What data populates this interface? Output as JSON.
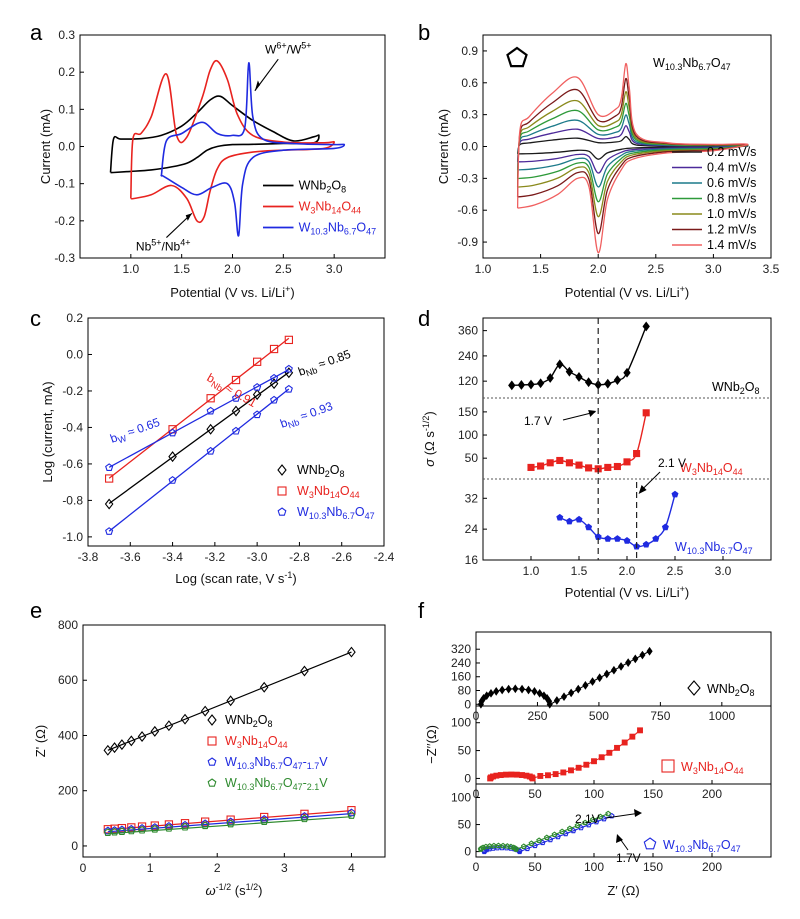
{
  "chart_data": [
    {
      "panel": "a",
      "type": "line",
      "xlabel": "Potential (V vs. Li/Li+)",
      "ylabel": "Current (mA)",
      "xlim": [
        0.5,
        3.5
      ],
      "ylim": [
        -0.3,
        0.3
      ],
      "xticks": [
        1.0,
        1.5,
        2.0,
        2.5,
        3.0
      ],
      "yticks": [
        -0.3,
        -0.2,
        -0.1,
        0.0,
        0.1,
        0.2,
        0.3
      ],
      "legend": "bottom-right",
      "series": [
        {
          "name": "WNb2O8",
          "color": "#000000",
          "x": [
            0.8,
            0.83,
            1.0,
            1.2,
            1.4,
            1.55,
            1.65,
            1.75,
            1.85,
            2.0,
            2.2,
            2.5,
            2.8,
            2.85,
            2.8,
            2.6,
            2.4,
            2.2,
            2.0,
            1.88,
            1.78,
            1.65,
            1.5,
            1.3,
            1.1,
            0.9,
            0.83,
            0.8
          ],
          "y": [
            -0.07,
            -0.07,
            -0.067,
            -0.063,
            -0.055,
            -0.045,
            -0.03,
            -0.01,
            0.0,
            0.005,
            0.006,
            0.008,
            0.01,
            0.03,
            0.026,
            0.015,
            0.04,
            0.07,
            0.11,
            0.135,
            0.125,
            0.09,
            0.055,
            0.03,
            0.021,
            0.02,
            0.02,
            -0.07
          ]
        },
        {
          "name": "W3Nb14O44",
          "color": "#e8231f",
          "x": [
            1.0,
            1.03,
            1.2,
            1.4,
            1.55,
            1.65,
            1.72,
            1.78,
            1.85,
            1.95,
            2.2,
            2.5,
            2.9,
            3.0,
            2.9,
            2.5,
            2.2,
            2.05,
            1.95,
            1.85,
            1.78,
            1.7,
            1.55,
            1.45,
            1.35,
            1.2,
            1.1,
            1.02,
            1.0
          ],
          "y": [
            -0.14,
            -0.14,
            -0.13,
            -0.105,
            -0.14,
            -0.2,
            -0.19,
            -0.12,
            -0.06,
            -0.03,
            -0.015,
            -0.01,
            -0.005,
            0.012,
            0.01,
            0.012,
            0.03,
            0.085,
            0.18,
            0.23,
            0.205,
            0.13,
            0.025,
            0.03,
            0.195,
            0.08,
            0.035,
            0.02,
            -0.14
          ]
        },
        {
          "name": "W10.3Nb6.7O47",
          "color": "#1f2ae0",
          "x": [
            1.3,
            1.32,
            1.5,
            1.65,
            1.8,
            1.95,
            2.02,
            2.06,
            2.1,
            2.2,
            2.5,
            3.0,
            3.1,
            3.0,
            2.6,
            2.3,
            2.2,
            2.16,
            2.12,
            2.0,
            1.85,
            1.7,
            1.5,
            1.35,
            1.3
          ],
          "y": [
            -0.08,
            -0.08,
            -0.11,
            -0.13,
            -0.11,
            -0.1,
            -0.15,
            -0.24,
            -0.1,
            -0.03,
            -0.01,
            -0.005,
            0.005,
            0.005,
            0.008,
            0.02,
            0.08,
            0.225,
            0.05,
            0.03,
            0.035,
            0.065,
            0.035,
            0.015,
            -0.08
          ]
        }
      ],
      "annotations": [
        {
          "text": "W6+/W5+",
          "x": 2.15,
          "y": 0.22
        },
        {
          "text": "Nb5+/Nb4+",
          "x": 1.6,
          "y": -0.21
        }
      ]
    },
    {
      "panel": "b",
      "type": "line",
      "xlabel": "Potential (V vs. Li/Li+)",
      "ylabel": "Current (mA)",
      "xlim": [
        1.0,
        3.5
      ],
      "ylim": [
        -1.05,
        1.05
      ],
      "xticks": [
        1.0,
        1.5,
        2.0,
        2.5,
        3.0,
        3.5
      ],
      "yticks": [
        -0.9,
        -0.6,
        -0.3,
        0.0,
        0.3,
        0.6,
        0.9
      ],
      "inset_title": "W10.3Nb6.7O47",
      "legend": "right",
      "shape": {
        "x": [
          1.3,
          1.45,
          1.65,
          1.82,
          1.92,
          2.0,
          2.08,
          2.2,
          2.3,
          2.6,
          3.0,
          3.3,
          3.0,
          2.6,
          2.33,
          2.27,
          2.24,
          2.2,
          2.15,
          2.0,
          1.82,
          1.6,
          1.4,
          1.32,
          1.3
        ],
        "y": [
          -0.58,
          -0.55,
          -0.45,
          -0.3,
          -0.38,
          -1.0,
          -0.5,
          -0.22,
          -0.12,
          -0.06,
          -0.04,
          0.02,
          0.02,
          0.035,
          0.12,
          0.55,
          0.78,
          0.45,
          0.35,
          0.3,
          0.65,
          0.5,
          0.28,
          0.15,
          -0.58
        ]
      },
      "series": [
        {
          "name": "0.2 mV/s",
          "scale": 0.12,
          "color": "#1b1b1b"
        },
        {
          "name": "0.4 mV/s",
          "scale": 0.25,
          "color": "#4d2a9a"
        },
        {
          "name": "0.6 mV/s",
          "scale": 0.38,
          "color": "#1c7a8a"
        },
        {
          "name": "0.8 mV/s",
          "scale": 0.52,
          "color": "#2e9a3a"
        },
        {
          "name": "1.0 mV/s",
          "scale": 0.66,
          "color": "#8a8a1c"
        },
        {
          "name": "1.2 mV/s",
          "scale": 0.82,
          "color": "#7a1a1a"
        },
        {
          "name": "1.4 mV/s",
          "scale": 1.0,
          "color": "#f06060"
        }
      ]
    },
    {
      "panel": "c",
      "type": "scatter",
      "xlabel": "Log (scan rate, V s-1)",
      "ylabel": "Log (current, mA)",
      "xlim": [
        -3.8,
        -2.4
      ],
      "ylim": [
        -1.05,
        0.2
      ],
      "xticks": [
        -3.8,
        -3.6,
        -3.4,
        -3.2,
        -3.0,
        -2.8,
        -2.6,
        -2.4
      ],
      "yticks": [
        -1.0,
        -0.8,
        -0.6,
        -0.4,
        -0.2,
        0.0,
        0.2
      ],
      "legend": "bottom-right",
      "x": [
        -3.7,
        -3.4,
        -3.22,
        -3.1,
        -3.0,
        -2.92,
        -2.85
      ],
      "series": [
        {
          "name": "WNb2O8",
          "marker": "diamond",
          "color": "#000000",
          "values": [
            -0.82,
            -0.56,
            -0.41,
            -0.31,
            -0.22,
            -0.16,
            -0.1
          ]
        },
        {
          "name": "W3Nb14O44",
          "marker": "square",
          "color": "#e8231f",
          "values": [
            -0.68,
            -0.41,
            -0.24,
            -0.14,
            -0.04,
            0.03,
            0.08
          ]
        },
        {
          "name": "W10.3Nb6.7O47",
          "marker": "pentagon",
          "color": "#1f2ae0",
          "values": [
            -0.97,
            -0.69,
            -0.53,
            -0.42,
            -0.33,
            -0.25,
            -0.19
          ]
        },
        {
          "name": "W",
          "marker": "pentagon",
          "color": "#1f2ae0",
          "values": [
            -0.62,
            -0.43,
            -0.31,
            -0.24,
            -0.18,
            -0.13,
            -0.08
          ]
        }
      ],
      "annotations": [
        {
          "text": "bNb ≈ 0.91",
          "color": "#e8231f"
        },
        {
          "text": "bNb ≈ 0.85",
          "color": "#000000"
        },
        {
          "text": "bW ≈ 0.65",
          "color": "#1f2ae0"
        },
        {
          "text": "bNb ≈ 0.93",
          "color": "#1f2ae0"
        }
      ]
    },
    {
      "panel": "d",
      "type": "line",
      "xlabel": "Potential (V vs. Li/Li+)",
      "ylabel": "σ (Ω s-1/2)",
      "xlim": [
        0.5,
        3.5
      ],
      "xticks": [
        1.0,
        1.5,
        2.0,
        2.5,
        3.0
      ],
      "subplots": [
        {
          "name": "WNb2O8",
          "color": "#000000",
          "marker": "diamond",
          "ylim": [
            40,
            420
          ],
          "yticks": [
            120,
            240,
            360
          ],
          "x": [
            0.8,
            0.9,
            1.0,
            1.1,
            1.2,
            1.3,
            1.4,
            1.5,
            1.6,
            1.7,
            1.8,
            1.9,
            2.0,
            2.2
          ],
          "y": [
            100,
            102,
            104,
            110,
            135,
            200,
            165,
            140,
            115,
            103,
            108,
            125,
            160,
            380
          ]
        },
        {
          "name": "W3Nb14O44",
          "color": "#e8231f",
          "marker": "square",
          "ylim": [
            5,
            180
          ],
          "yticks": [
            50,
            100,
            150
          ],
          "x": [
            1.0,
            1.1,
            1.2,
            1.3,
            1.4,
            1.5,
            1.6,
            1.7,
            1.8,
            1.9,
            2.0,
            2.1,
            2.2
          ],
          "y": [
            30,
            33,
            40,
            45,
            40,
            35,
            29,
            27,
            30,
            32,
            42,
            60,
            148
          ]
        },
        {
          "name": "W10.3Nb6.7O47",
          "color": "#1f2ae0",
          "marker": "pentagon",
          "ylim": [
            16,
            37
          ],
          "yticks": [
            16,
            24,
            32
          ],
          "x": [
            1.3,
            1.4,
            1.5,
            1.6,
            1.7,
            1.8,
            1.9,
            2.0,
            2.1,
            2.2,
            2.3,
            2.4,
            2.5
          ],
          "y": [
            27,
            26,
            26.5,
            24.5,
            22,
            21.5,
            21.5,
            21,
            19.5,
            20,
            21.5,
            24.5,
            33
          ]
        }
      ],
      "annotations": [
        {
          "text": "1.7 V",
          "x": 1.7
        },
        {
          "text": "2.1 V",
          "x": 2.1
        }
      ]
    },
    {
      "panel": "e",
      "type": "scatter",
      "xlabel": "ω-1/2 (s1/2)",
      "ylabel": "Z' (Ω)",
      "xlim": [
        0,
        4.5
      ],
      "ylim": [
        -40,
        800
      ],
      "xticks": [
        0,
        1,
        2,
        3,
        4
      ],
      "yticks": [
        0,
        200,
        400,
        600,
        800
      ],
      "legend": "center-right",
      "x": [
        0.37,
        0.47,
        0.58,
        0.72,
        0.88,
        1.07,
        1.28,
        1.52,
        1.82,
        2.2,
        2.7,
        3.3,
        4.0
      ],
      "series": [
        {
          "name": "WNb2O8",
          "marker": "diamond",
          "color": "#000000",
          "slope": 98,
          "intercept": 310
        },
        {
          "name": "W3Nb14O44",
          "marker": "square",
          "color": "#e8231f",
          "slope": 19,
          "intercept": 52
        },
        {
          "name": "W10.3Nb6.7O47-1.7V",
          "marker": "pentagon",
          "color": "#1f2ae0",
          "slope": 18,
          "intercept": 45
        },
        {
          "name": "W10.3Nb6.7O47-2.1V",
          "marker": "pentagon",
          "color": "#2e8a2e",
          "slope": 17,
          "intercept": 38
        }
      ]
    },
    {
      "panel": "f",
      "type": "scatter",
      "xlabel": "Z' (Ω)",
      "ylabel": "-Z''(Ω)",
      "subplots": [
        {
          "name": "WNb2O8",
          "marker": "diamond",
          "color": "#000000",
          "xlim": [
            0,
            1200
          ],
          "ylim": [
            -10,
            420
          ],
          "xticks": [
            0,
            250,
            500,
            750,
            1000
          ],
          "yticks": [
            0,
            80,
            160,
            240,
            320
          ]
        },
        {
          "name": "W3Nb14O44",
          "marker": "square",
          "color": "#e8231f",
          "xlim": [
            0,
            250
          ],
          "ylim": [
            -10,
            130
          ],
          "xticks": [
            0,
            50,
            100,
            150,
            200
          ],
          "yticks": [
            0,
            50,
            100
          ]
        },
        {
          "name": "W10.3Nb6.7O47",
          "marker": "pentagon",
          "color": "#1f2ae0",
          "xlim": [
            0,
            250
          ],
          "ylim": [
            -10,
            125
          ],
          "xticks": [
            0,
            50,
            100,
            150,
            200
          ],
          "yticks": [
            0,
            50,
            100
          ]
        }
      ],
      "annotations": [
        {
          "text": "2.1V",
          "color": "#000000"
        },
        {
          "text": "1.7V",
          "color": "#000000"
        }
      ]
    }
  ]
}
